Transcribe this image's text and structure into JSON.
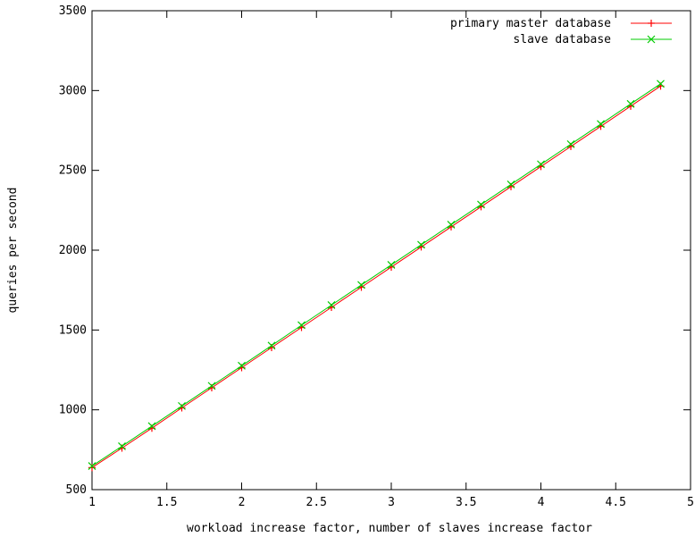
{
  "chart_data": {
    "type": "line",
    "title": "",
    "xlabel": "workload increase factor, number of slaves increase factor",
    "ylabel": "queries per second",
    "xlim": [
      1,
      5
    ],
    "ylim": [
      500,
      3500
    ],
    "x_ticks": [
      1,
      1.5,
      2,
      2.5,
      3,
      3.5,
      4,
      4.5,
      5
    ],
    "x_tick_labels": [
      "1",
      "1.5",
      "2",
      "2.5",
      "3",
      "3.5",
      "4",
      "4.5",
      "5"
    ],
    "y_ticks": [
      500,
      1000,
      1500,
      2000,
      2500,
      3000,
      3500
    ],
    "y_tick_labels": [
      "500",
      "1000",
      "1500",
      "2000",
      "2500",
      "3000",
      "3500"
    ],
    "grid": false,
    "legend_position": "top-right",
    "x": [
      1.0,
      1.2,
      1.4,
      1.6,
      1.8,
      2.0,
      2.2,
      2.4,
      2.6,
      2.8,
      3.0,
      3.2,
      3.4,
      3.6,
      3.8,
      4.0,
      4.2,
      4.4,
      4.6,
      4.8
    ],
    "series": [
      {
        "name": "primary master database",
        "color": "#ff0000",
        "marker": "plus",
        "values": [
          638,
          760,
          885,
          1012,
          1138,
          1264,
          1390,
          1516,
          1642,
          1768,
          1894,
          2020,
          2146,
          2272,
          2398,
          2524,
          2650,
          2776,
          2902,
          3028
        ]
      },
      {
        "name": "slave database",
        "color": "#00cc00",
        "marker": "cross",
        "values": [
          648,
          772,
          898,
          1024,
          1150,
          1276,
          1402,
          1530,
          1656,
          1782,
          1908,
          2034,
          2160,
          2286,
          2412,
          2538,
          2664,
          2790,
          2916,
          3042
        ]
      }
    ]
  }
}
